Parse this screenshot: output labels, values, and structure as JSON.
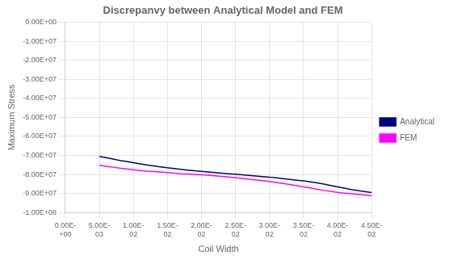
{
  "chart_data": {
    "type": "line",
    "title": "Discrepanvy between Analytical Model and FEM",
    "xlabel": "Coil Width",
    "ylabel": "Maximum Stress",
    "x": [
      0.005,
      0.006,
      0.007,
      0.008,
      0.009,
      0.01,
      0.011,
      0.012,
      0.013,
      0.014,
      0.015,
      0.016,
      0.017,
      0.018,
      0.019,
      0.02,
      0.021,
      0.022,
      0.023,
      0.024,
      0.025,
      0.026,
      0.027,
      0.028,
      0.029,
      0.03,
      0.031,
      0.032,
      0.033,
      0.034,
      0.035,
      0.036,
      0.037,
      0.038,
      0.039,
      0.04,
      0.041,
      0.042,
      0.043,
      0.044,
      0.045
    ],
    "series": [
      {
        "name": "Analytical",
        "color": "#000080",
        "values": [
          -70500000.0,
          -71200000.0,
          -71900000.0,
          -72600000.0,
          -73200000.0,
          -73800000.0,
          -74400000.0,
          -75000000.0,
          -75500000.0,
          -76000000.0,
          -76500000.0,
          -76900000.0,
          -77300000.0,
          -77700000.0,
          -78100000.0,
          -78400000.0,
          -78700000.0,
          -79000000.0,
          -79300000.0,
          -79600000.0,
          -79900000.0,
          -80200000.0,
          -80500000.0,
          -80800000.0,
          -81100000.0,
          -81400000.0,
          -81800000.0,
          -82200000.0,
          -82600000.0,
          -83000000.0,
          -83400000.0,
          -83900000.0,
          -84400000.0,
          -85100000.0,
          -85800000.0,
          -86500000.0,
          -87200000.0,
          -87900000.0,
          -88500000.0,
          -89000000.0,
          -89500000.0
        ]
      },
      {
        "name": "FEM",
        "color": "#FF00FF",
        "values": [
          -75200000.0,
          -75700000.0,
          -76200000.0,
          -76700000.0,
          -77100000.0,
          -77500000.0,
          -77900000.0,
          -78300000.0,
          -78500000.0,
          -78700000.0,
          -79000000.0,
          -79300000.0,
          -79600000.0,
          -79800000.0,
          -80000000.0,
          -80200000.0,
          -80400000.0,
          -80700000.0,
          -81000000.0,
          -81300000.0,
          -81700000.0,
          -82100000.0,
          -82500000.0,
          -82900000.0,
          -83300000.0,
          -83700000.0,
          -84200000.0,
          -84700000.0,
          -85300000.0,
          -85900000.0,
          -86500000.0,
          -87100000.0,
          -87800000.0,
          -88400000.0,
          -88900000.0,
          -89400000.0,
          -89800000.0,
          -90200000.0,
          -90500000.0,
          -90800000.0,
          -91100000.0
        ]
      }
    ],
    "xlim": [
      0,
      0.045
    ],
    "ylim": [
      -100000000.0,
      0
    ],
    "xticks": [
      {
        "value": 0.0,
        "label": "0.00E-\n+00"
      },
      {
        "value": 0.005,
        "label": "5.00E-\n03"
      },
      {
        "value": 0.01,
        "label": "1.00E-\n02"
      },
      {
        "value": 0.015,
        "label": "1.50E-\n02"
      },
      {
        "value": 0.02,
        "label": "2.00E-\n02"
      },
      {
        "value": 0.025,
        "label": "2.50E-\n02"
      },
      {
        "value": 0.03,
        "label": "3.00E-\n02"
      },
      {
        "value": 0.035,
        "label": "3.50E-\n02"
      },
      {
        "value": 0.04,
        "label": "4.00E-\n02"
      },
      {
        "value": 0.045,
        "label": "4.50E-\n02"
      }
    ],
    "yticks": [
      {
        "value": 0,
        "label": "0.00E+00"
      },
      {
        "value": -10000000.0,
        "label": "-1.00E+07"
      },
      {
        "value": -20000000.0,
        "label": "-2.00E+07"
      },
      {
        "value": -30000000.0,
        "label": "-3.00E+07"
      },
      {
        "value": -40000000.0,
        "label": "-4.00E+07"
      },
      {
        "value": -50000000.0,
        "label": "-5.00E+07"
      },
      {
        "value": -60000000.0,
        "label": "-6.00E+07"
      },
      {
        "value": -70000000.0,
        "label": "-7.00E+07"
      },
      {
        "value": -80000000.0,
        "label": "-8.00E+07"
      },
      {
        "value": -90000000.0,
        "label": "-9.00E+07"
      },
      {
        "value": -100000000.0,
        "label": "-1.00E+08"
      }
    ],
    "grid": true,
    "legend": "right"
  }
}
